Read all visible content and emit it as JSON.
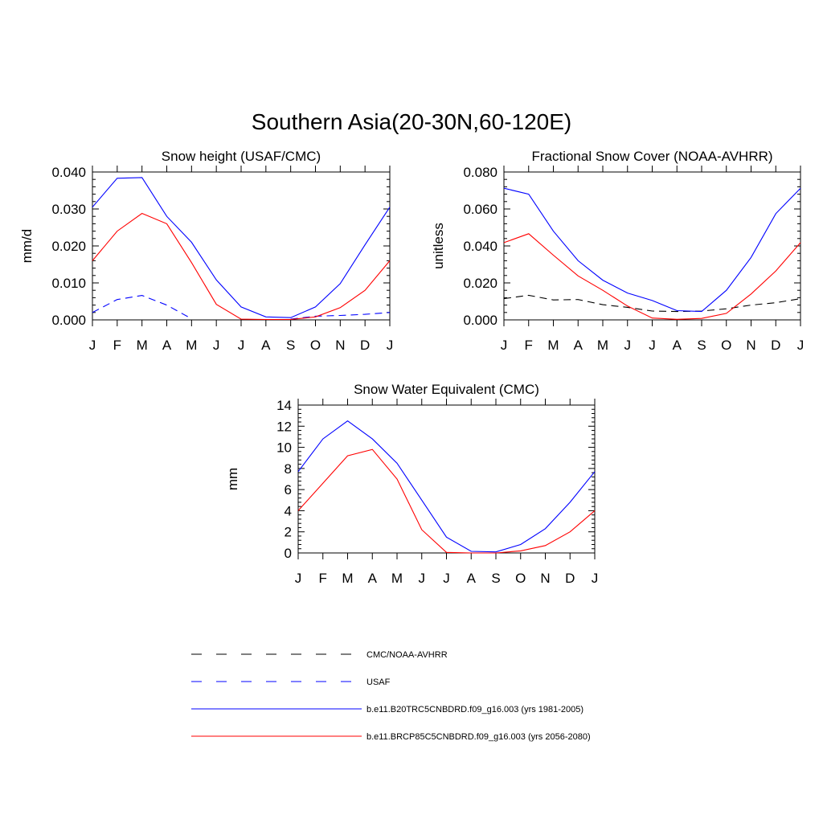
{
  "title": "Southern Asia(20-30N,60-120E)",
  "colors": {
    "obs": "#000000",
    "usaf": "#0000ff",
    "hist": "#0000ff",
    "future": "#ff0000"
  },
  "legend": [
    {
      "label": "CMC/NOAA-AVHRR",
      "color": "#000000",
      "dash": true
    },
    {
      "label": "USAF",
      "color": "#0000ff",
      "dash": true
    },
    {
      "label": "b.e11.B20TRC5CNBDRD.f09_g16.003 (yrs 1981-2005)",
      "color": "#0000ff",
      "dash": false
    },
    {
      "label": "b.e11.BRCP85C5CNBDRD.f09_g16.003 (yrs 2056-2080)",
      "color": "#ff0000",
      "dash": false
    }
  ],
  "chart_data": [
    {
      "type": "line",
      "title": "Snow height (USAF/CMC)",
      "ylabel": "mm/d",
      "xlabel": "",
      "categories": [
        "J",
        "F",
        "M",
        "A",
        "M",
        "J",
        "J",
        "A",
        "S",
        "O",
        "N",
        "D",
        "J"
      ],
      "ylim": [
        0,
        0.04
      ],
      "yticks": [
        "0.000",
        "0.010",
        "0.020",
        "0.030",
        "0.040"
      ],
      "series": [
        {
          "name": "USAF",
          "color": "#0000ff",
          "dash": true,
          "values": [
            0.002,
            0.0055,
            0.0066,
            0.004,
            0.0003,
            null,
            null,
            null,
            0.0002,
            0.001,
            0.0012,
            0.0015,
            0.002
          ]
        },
        {
          "name": "b.e11.B20TRC5CNBDRD.f09_g16.003 (yrs 1981-2005)",
          "color": "#0000ff",
          "dash": false,
          "values": [
            0.0305,
            0.0383,
            0.0385,
            0.028,
            0.021,
            0.0108,
            0.0035,
            0.0008,
            0.0006,
            0.0035,
            0.0098,
            0.0203,
            0.0305
          ]
        },
        {
          "name": "b.e11.BRCP85C5CNBDRD.f09_g16.003 (yrs 2056-2080)",
          "color": "#ff0000",
          "dash": false,
          "values": [
            0.016,
            0.024,
            0.0288,
            0.026,
            0.0155,
            0.0042,
            0.0002,
            0.0001,
            0.0001,
            0.0008,
            0.0033,
            0.008,
            0.016
          ]
        }
      ]
    },
    {
      "type": "line",
      "title": "Fractional Snow Cover (NOAA-AVHRR)",
      "ylabel": "unitless",
      "xlabel": "",
      "categories": [
        "J",
        "F",
        "M",
        "A",
        "M",
        "J",
        "J",
        "A",
        "S",
        "O",
        "N",
        "D",
        "J"
      ],
      "ylim": [
        0,
        0.08
      ],
      "yticks": [
        "0.000",
        "0.020",
        "0.040",
        "0.060",
        "0.080"
      ],
      "series": [
        {
          "name": "CMC/NOAA-AVHRR",
          "color": "#000000",
          "dash": true,
          "values": [
            0.0115,
            0.0133,
            0.0108,
            0.011,
            0.0082,
            0.0068,
            0.0048,
            0.0045,
            0.0048,
            0.006,
            0.008,
            0.0093,
            0.0115
          ]
        },
        {
          "name": "b.e11.B20TRC5CNBDRD.f09_g16.003 (yrs 1981-2005)",
          "color": "#0000ff",
          "dash": false,
          "values": [
            0.0712,
            0.068,
            0.048,
            0.032,
            0.0215,
            0.0145,
            0.0105,
            0.005,
            0.0045,
            0.016,
            0.0338,
            0.0575,
            0.0712
          ]
        },
        {
          "name": "b.e11.BRCP85C5CNBDRD.f09_g16.003 (yrs 2056-2080)",
          "color": "#ff0000",
          "dash": false,
          "values": [
            0.0418,
            0.0466,
            0.035,
            0.0238,
            0.016,
            0.0075,
            0.001,
            0.0003,
            0.0008,
            0.0035,
            0.014,
            0.0265,
            0.0418
          ]
        }
      ]
    },
    {
      "type": "line",
      "title": "Snow Water Equivalent (CMC)",
      "ylabel": "mm",
      "xlabel": "",
      "categories": [
        "J",
        "F",
        "M",
        "A",
        "M",
        "J",
        "J",
        "A",
        "S",
        "O",
        "N",
        "D",
        "J"
      ],
      "ylim": [
        0,
        14
      ],
      "yticks": [
        "0",
        "2",
        "4",
        "6",
        "8",
        "10",
        "12",
        "14"
      ],
      "series": [
        {
          "name": "CMC/NOAA-AVHRR",
          "color": "#000000",
          "dash": true,
          "values": [
            0,
            0,
            0,
            0,
            0,
            0,
            0,
            0,
            0,
            0,
            0,
            0,
            0
          ]
        },
        {
          "name": "b.e11.B20TRC5CNBDRD.f09_g16.003 (yrs 1981-2005)",
          "color": "#0000ff",
          "dash": false,
          "values": [
            7.7,
            10.8,
            12.5,
            10.8,
            8.5,
            5.0,
            1.5,
            0.15,
            0.1,
            0.8,
            2.3,
            4.8,
            7.7
          ]
        },
        {
          "name": "b.e11.BRCP85C5CNBDRD.f09_g16.003 (yrs 2056-2080)",
          "color": "#ff0000",
          "dash": false,
          "values": [
            4.0,
            6.6,
            9.2,
            9.8,
            7.0,
            2.2,
            0.05,
            0.0,
            0.0,
            0.2,
            0.7,
            2.0,
            4.0
          ]
        }
      ]
    }
  ]
}
